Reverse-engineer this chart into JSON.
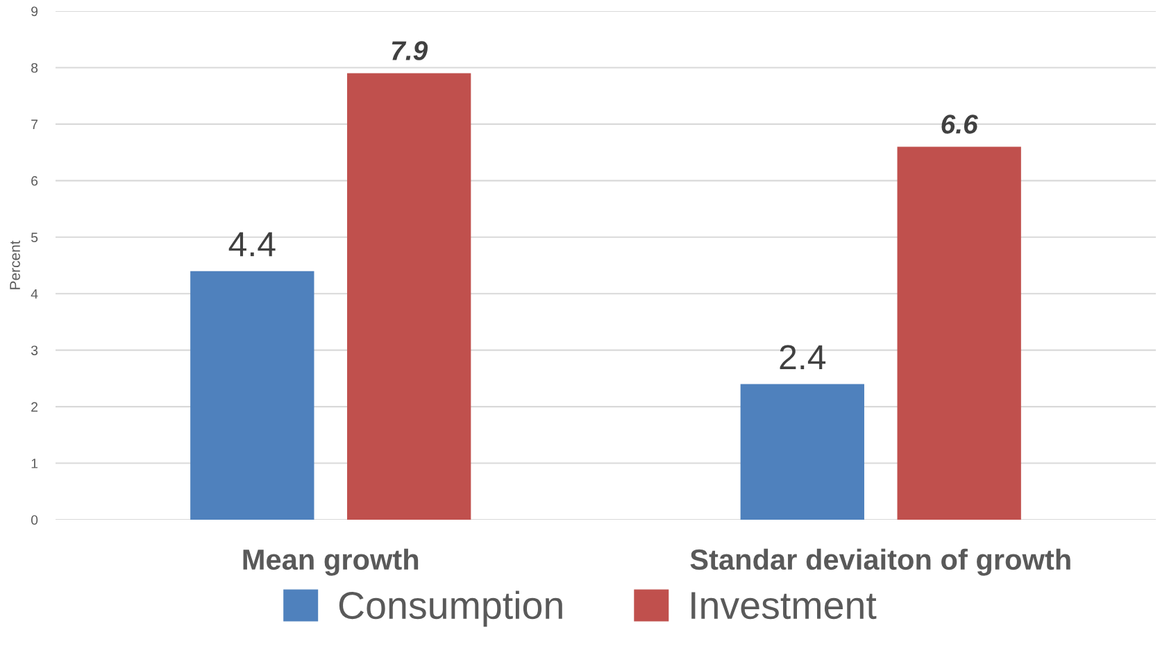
{
  "chart_data": {
    "type": "bar",
    "ylabel": "Percent",
    "categories": [
      "Mean growth",
      "Standar deviaiton of growth"
    ],
    "series": [
      {
        "name": "Consumption",
        "color": "#4f81bd",
        "values": [
          4.4,
          2.4
        ]
      },
      {
        "name": "Investment",
        "color": "#c0504d",
        "values": [
          7.9,
          6.6
        ]
      }
    ],
    "ylim": [
      0,
      9
    ],
    "yticks": [
      0,
      1,
      2,
      3,
      4,
      5,
      6,
      7,
      8,
      9
    ],
    "grid": "y",
    "legend": "bottom",
    "data_labels": true
  }
}
